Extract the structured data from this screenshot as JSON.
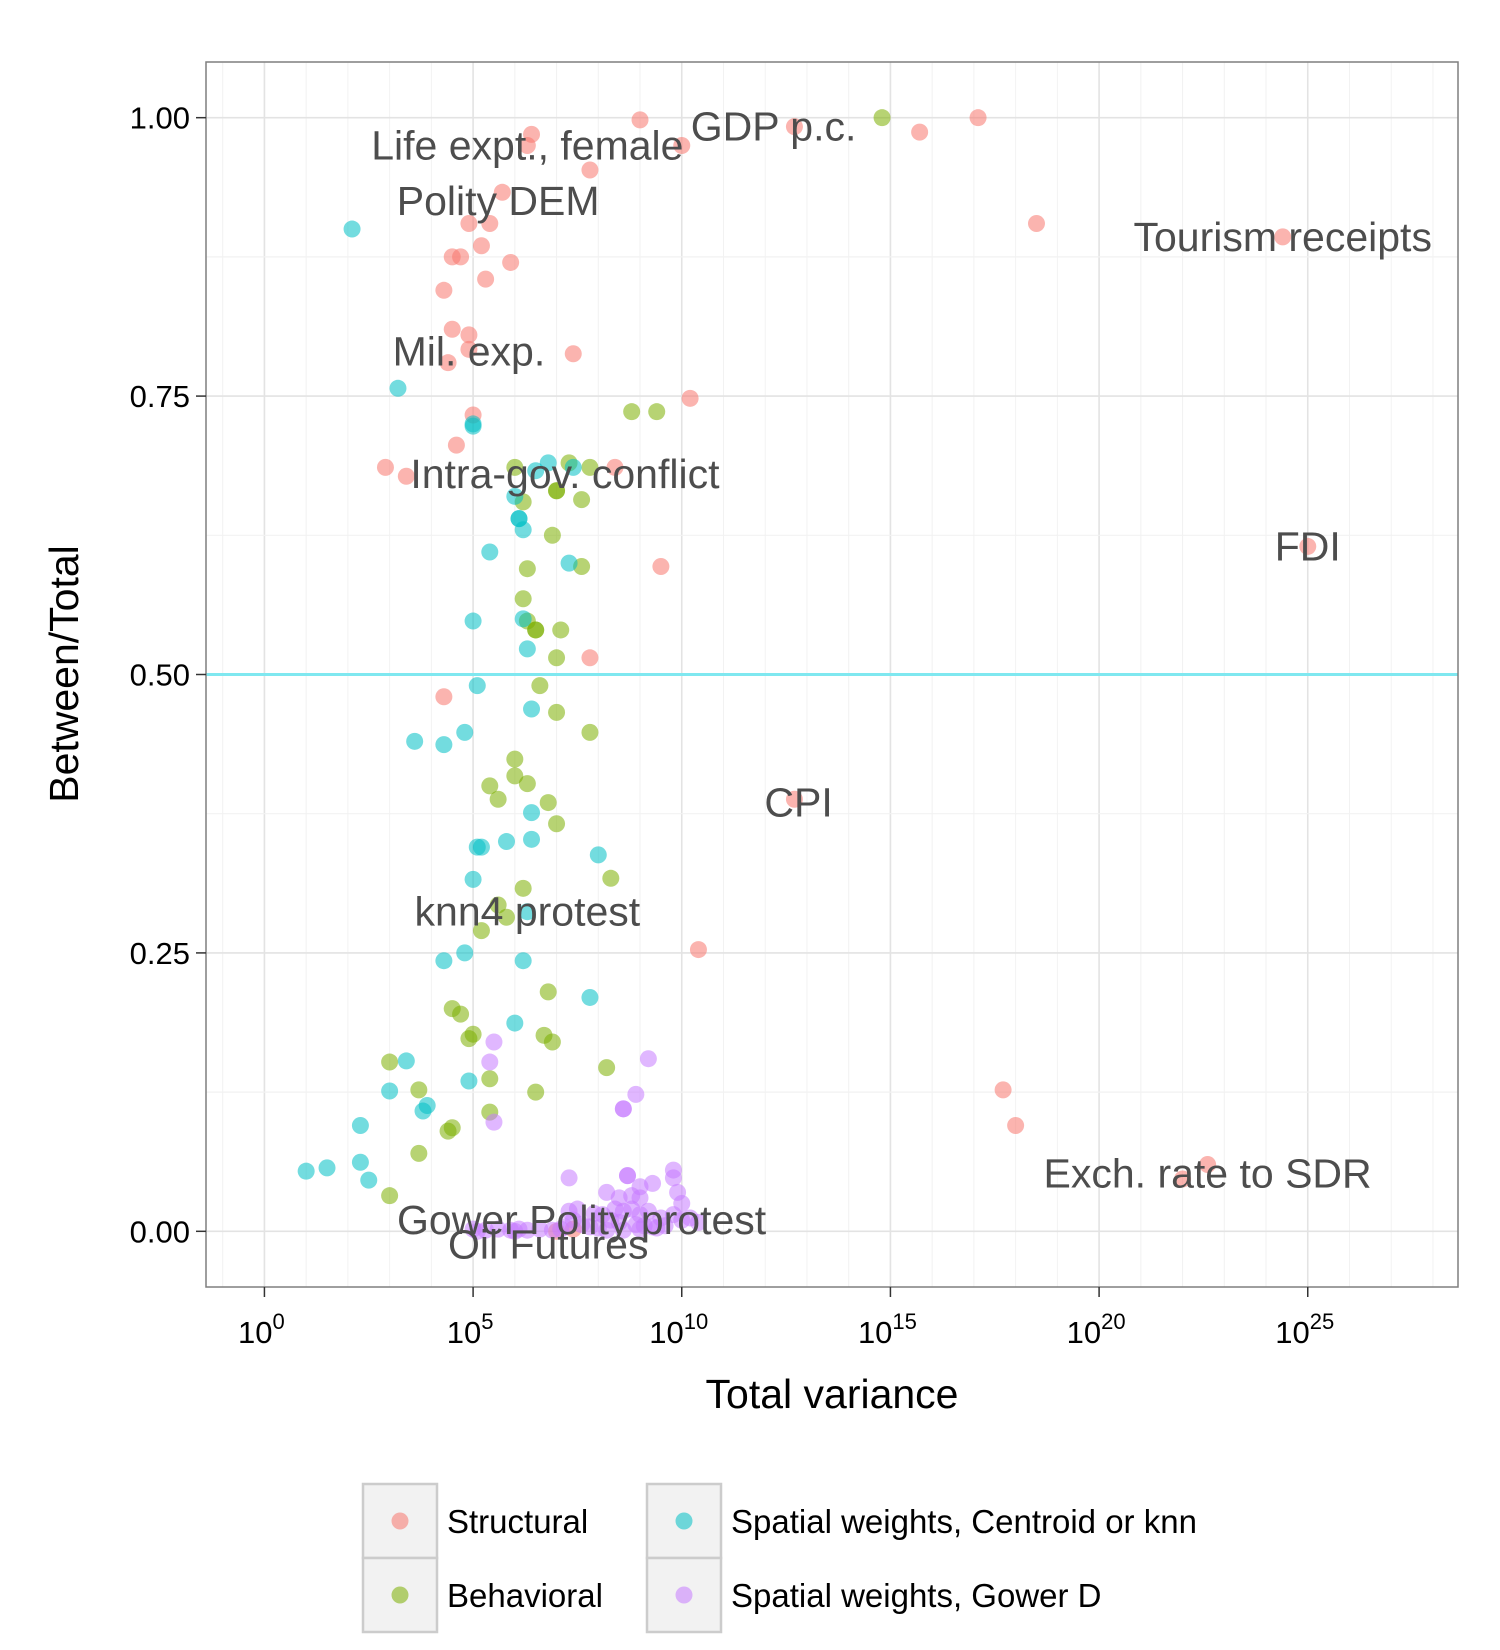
{
  "chart_data": {
    "type": "scatter",
    "xlabel": "Total variance",
    "ylabel": "Between/Total",
    "x_scale": "log10",
    "x_ticks": [
      {
        "exp": 0,
        "base": "10",
        "sup": "0"
      },
      {
        "exp": 5,
        "base": "10",
        "sup": "5"
      },
      {
        "exp": 10,
        "base": "10",
        "sup": "10"
      },
      {
        "exp": 15,
        "base": "10",
        "sup": "15"
      },
      {
        "exp": 20,
        "base": "10",
        "sup": "20"
      },
      {
        "exp": 25,
        "base": "10",
        "sup": "25"
      }
    ],
    "y_ticks": [
      "0.00",
      "0.25",
      "0.50",
      "0.75",
      "1.00"
    ],
    "xlim_log10": [
      -1.4,
      28.6
    ],
    "ylim": [
      -0.05,
      1.05
    ],
    "grid": true,
    "reference_line": {
      "y": 0.5,
      "color": "#7fe8f0"
    },
    "legend": {
      "position": "bottom",
      "items": [
        {
          "name": "Structural",
          "color": "#F8766D"
        },
        {
          "name": "Spatial weights, Centroid or knn",
          "color": "#00BFC4"
        },
        {
          "name": "Behavioral",
          "color": "#7CAE00"
        },
        {
          "name": "Spatial weights, Gower D",
          "color": "#C77CFF"
        }
      ]
    },
    "annotations": [
      {
        "text": "Life expt., female",
        "x": 6.3,
        "y": 0.975
      },
      {
        "text": "GDP p.c.",
        "x": 12.2,
        "y": 0.992
      },
      {
        "text": "Polity DEM",
        "x": 5.6,
        "y": 0.925
      },
      {
        "text": "Tourism receipts",
        "x": 24.4,
        "y": 0.893
      },
      {
        "text": "Mil. exp.",
        "x": 4.9,
        "y": 0.79
      },
      {
        "text": "Intra-gov. conflict",
        "x": 7.2,
        "y": 0.68
      },
      {
        "text": "FDI",
        "x": 25.0,
        "y": 0.615
      },
      {
        "text": "CPI",
        "x": 12.8,
        "y": 0.385
      },
      {
        "text": "knn4 protest",
        "x": 6.3,
        "y": 0.287
      },
      {
        "text": "Exch. rate to SDR",
        "x": 22.6,
        "y": 0.052
      },
      {
        "text": "Gower Polity protest",
        "x": 7.6,
        "y": 0.01
      },
      {
        "text": "Oil Futures",
        "x": 6.8,
        "y": -0.012
      }
    ],
    "series": [
      {
        "name": "Structural",
        "color": "#F8766D",
        "points": [
          [
            6.4,
            0.985
          ],
          [
            9.0,
            0.998
          ],
          [
            6.3,
            0.975
          ],
          [
            10.0,
            0.975
          ],
          [
            12.7,
            0.992
          ],
          [
            15.7,
            0.987
          ],
          [
            17.1,
            1.0
          ],
          [
            7.8,
            0.953
          ],
          [
            5.7,
            0.933
          ],
          [
            18.5,
            0.905
          ],
          [
            24.4,
            0.893
          ],
          [
            4.9,
            0.905
          ],
          [
            5.4,
            0.905
          ],
          [
            5.2,
            0.885
          ],
          [
            4.5,
            0.875
          ],
          [
            4.7,
            0.875
          ],
          [
            5.9,
            0.87
          ],
          [
            5.3,
            0.855
          ],
          [
            4.3,
            0.845
          ],
          [
            4.5,
            0.81
          ],
          [
            4.9,
            0.805
          ],
          [
            4.9,
            0.792
          ],
          [
            7.4,
            0.788
          ],
          [
            4.4,
            0.78
          ],
          [
            10.2,
            0.748
          ],
          [
            5.0,
            0.733
          ],
          [
            4.6,
            0.706
          ],
          [
            2.9,
            0.686
          ],
          [
            3.4,
            0.678
          ],
          [
            8.4,
            0.686
          ],
          [
            9.5,
            0.597
          ],
          [
            7.8,
            0.515
          ],
          [
            4.3,
            0.48
          ],
          [
            10.4,
            0.253
          ],
          [
            17.7,
            0.127
          ],
          [
            18.0,
            0.095
          ],
          [
            12.7,
            0.388
          ],
          [
            25.0,
            0.615
          ],
          [
            22.0,
            0.047
          ],
          [
            22.6,
            0.06
          ],
          [
            7.4,
            0.002
          ],
          [
            7.0,
            0.0
          ]
        ]
      },
      {
        "name": "Behavioral",
        "color": "#7CAE00",
        "points": [
          [
            14.8,
            1.0
          ],
          [
            8.8,
            0.736
          ],
          [
            9.4,
            0.736
          ],
          [
            6.0,
            0.686
          ],
          [
            7.3,
            0.69
          ],
          [
            7.8,
            0.686
          ],
          [
            7.0,
            0.665
          ],
          [
            7.0,
            0.665
          ],
          [
            6.2,
            0.655
          ],
          [
            7.6,
            0.657
          ],
          [
            6.9,
            0.625
          ],
          [
            6.3,
            0.595
          ],
          [
            7.6,
            0.597
          ],
          [
            6.2,
            0.568
          ],
          [
            6.3,
            0.548
          ],
          [
            6.5,
            0.54
          ],
          [
            6.5,
            0.54
          ],
          [
            7.1,
            0.54
          ],
          [
            7.0,
            0.515
          ],
          [
            6.6,
            0.49
          ],
          [
            7.0,
            0.466
          ],
          [
            7.8,
            0.448
          ],
          [
            6.0,
            0.424
          ],
          [
            5.4,
            0.4
          ],
          [
            6.0,
            0.409
          ],
          [
            6.3,
            0.402
          ],
          [
            5.6,
            0.388
          ],
          [
            6.8,
            0.385
          ],
          [
            7.0,
            0.366
          ],
          [
            8.3,
            0.317
          ],
          [
            6.2,
            0.308
          ],
          [
            5.6,
            0.293
          ],
          [
            5.8,
            0.282
          ],
          [
            5.2,
            0.27
          ],
          [
            6.8,
            0.215
          ],
          [
            4.5,
            0.2
          ],
          [
            4.7,
            0.195
          ],
          [
            5.0,
            0.177
          ],
          [
            4.9,
            0.173
          ],
          [
            6.7,
            0.176
          ],
          [
            6.9,
            0.17
          ],
          [
            8.2,
            0.147
          ],
          [
            5.4,
            0.137
          ],
          [
            3.0,
            0.152
          ],
          [
            3.7,
            0.127
          ],
          [
            6.5,
            0.125
          ],
          [
            5.4,
            0.107
          ],
          [
            4.5,
            0.093
          ],
          [
            4.4,
            0.09
          ],
          [
            3.7,
            0.07
          ],
          [
            3.0,
            0.032
          ]
        ]
      },
      {
        "name": "Spatial weights, Centroid or knn",
        "color": "#00BFC4",
        "points": [
          [
            2.1,
            0.9
          ],
          [
            3.2,
            0.757
          ],
          [
            5.0,
            0.725
          ],
          [
            5.0,
            0.723
          ],
          [
            7.4,
            0.686
          ],
          [
            6.8,
            0.69
          ],
          [
            6.5,
            0.683
          ],
          [
            6.0,
            0.66
          ],
          [
            6.1,
            0.64
          ],
          [
            6.1,
            0.64
          ],
          [
            6.2,
            0.63
          ],
          [
            5.4,
            0.61
          ],
          [
            7.3,
            0.6
          ],
          [
            5.0,
            0.548
          ],
          [
            6.2,
            0.55
          ],
          [
            6.3,
            0.523
          ],
          [
            5.1,
            0.49
          ],
          [
            6.4,
            0.469
          ],
          [
            3.6,
            0.44
          ],
          [
            4.3,
            0.437
          ],
          [
            4.8,
            0.448
          ],
          [
            6.4,
            0.376
          ],
          [
            5.1,
            0.345
          ],
          [
            5.2,
            0.345
          ],
          [
            5.8,
            0.35
          ],
          [
            6.4,
            0.352
          ],
          [
            8.0,
            0.338
          ],
          [
            5.0,
            0.316
          ],
          [
            6.3,
            0.287
          ],
          [
            4.3,
            0.243
          ],
          [
            4.8,
            0.25
          ],
          [
            6.2,
            0.243
          ],
          [
            7.8,
            0.21
          ],
          [
            6.0,
            0.187
          ],
          [
            4.9,
            0.135
          ],
          [
            3.4,
            0.153
          ],
          [
            3.0,
            0.126
          ],
          [
            3.9,
            0.113
          ],
          [
            3.8,
            0.108
          ],
          [
            2.3,
            0.095
          ],
          [
            2.3,
            0.062
          ],
          [
            1.5,
            0.057
          ],
          [
            2.5,
            0.046
          ],
          [
            1.0,
            0.054
          ]
        ]
      },
      {
        "name": "Spatial weights, Gower D",
        "color": "#C77CFF",
        "points": [
          [
            5.5,
            0.17
          ],
          [
            5.4,
            0.152
          ],
          [
            9.2,
            0.155
          ],
          [
            8.9,
            0.123
          ],
          [
            8.6,
            0.11
          ],
          [
            8.6,
            0.11
          ],
          [
            5.5,
            0.098
          ],
          [
            9.8,
            0.055
          ],
          [
            9.8,
            0.048
          ],
          [
            8.2,
            0.035
          ],
          [
            8.5,
            0.03
          ],
          [
            8.8,
            0.032
          ],
          [
            9.0,
            0.03
          ],
          [
            9.3,
            0.043
          ],
          [
            9.9,
            0.035
          ],
          [
            10.0,
            0.025
          ],
          [
            7.3,
            0.048
          ],
          [
            8.7,
            0.05
          ],
          [
            8.7,
            0.05
          ],
          [
            9.0,
            0.04
          ],
          [
            8.4,
            0.02
          ],
          [
            8.6,
            0.018
          ],
          [
            8.8,
            0.02
          ],
          [
            9.0,
            0.015
          ],
          [
            9.2,
            0.018
          ],
          [
            9.5,
            0.012
          ],
          [
            9.8,
            0.015
          ],
          [
            10.0,
            0.01
          ],
          [
            10.2,
            0.012
          ],
          [
            10.4,
            0.008
          ],
          [
            7.3,
            0.018
          ],
          [
            7.5,
            0.02
          ],
          [
            7.9,
            0.016
          ],
          [
            8.1,
            0.015
          ],
          [
            8.3,
            0.01
          ],
          [
            8.5,
            0.008
          ],
          [
            8.9,
            0.006
          ],
          [
            9.1,
            0.005
          ],
          [
            9.3,
            0.004
          ],
          [
            9.6,
            0.005
          ],
          [
            7.4,
            0.01
          ],
          [
            7.6,
            0.006
          ],
          [
            7.8,
            0.004
          ],
          [
            8.0,
            0.003
          ],
          [
            7.2,
            0.004
          ],
          [
            5.0,
            0.002
          ],
          [
            5.3,
            0.001
          ],
          [
            5.6,
            0.002
          ],
          [
            5.9,
            0.001
          ],
          [
            6.1,
            0.002
          ],
          [
            6.3,
            0.001
          ],
          [
            6.6,
            0.002
          ],
          [
            6.9,
            0.001
          ],
          [
            7.1,
            0.002
          ],
          [
            8.2,
            0.001
          ],
          [
            8.6,
            0.001
          ],
          [
            9.0,
            0.002
          ],
          [
            9.4,
            0.003
          ],
          [
            5.1,
            0.0
          ],
          [
            6.0,
            0.0
          ]
        ]
      }
    ]
  }
}
